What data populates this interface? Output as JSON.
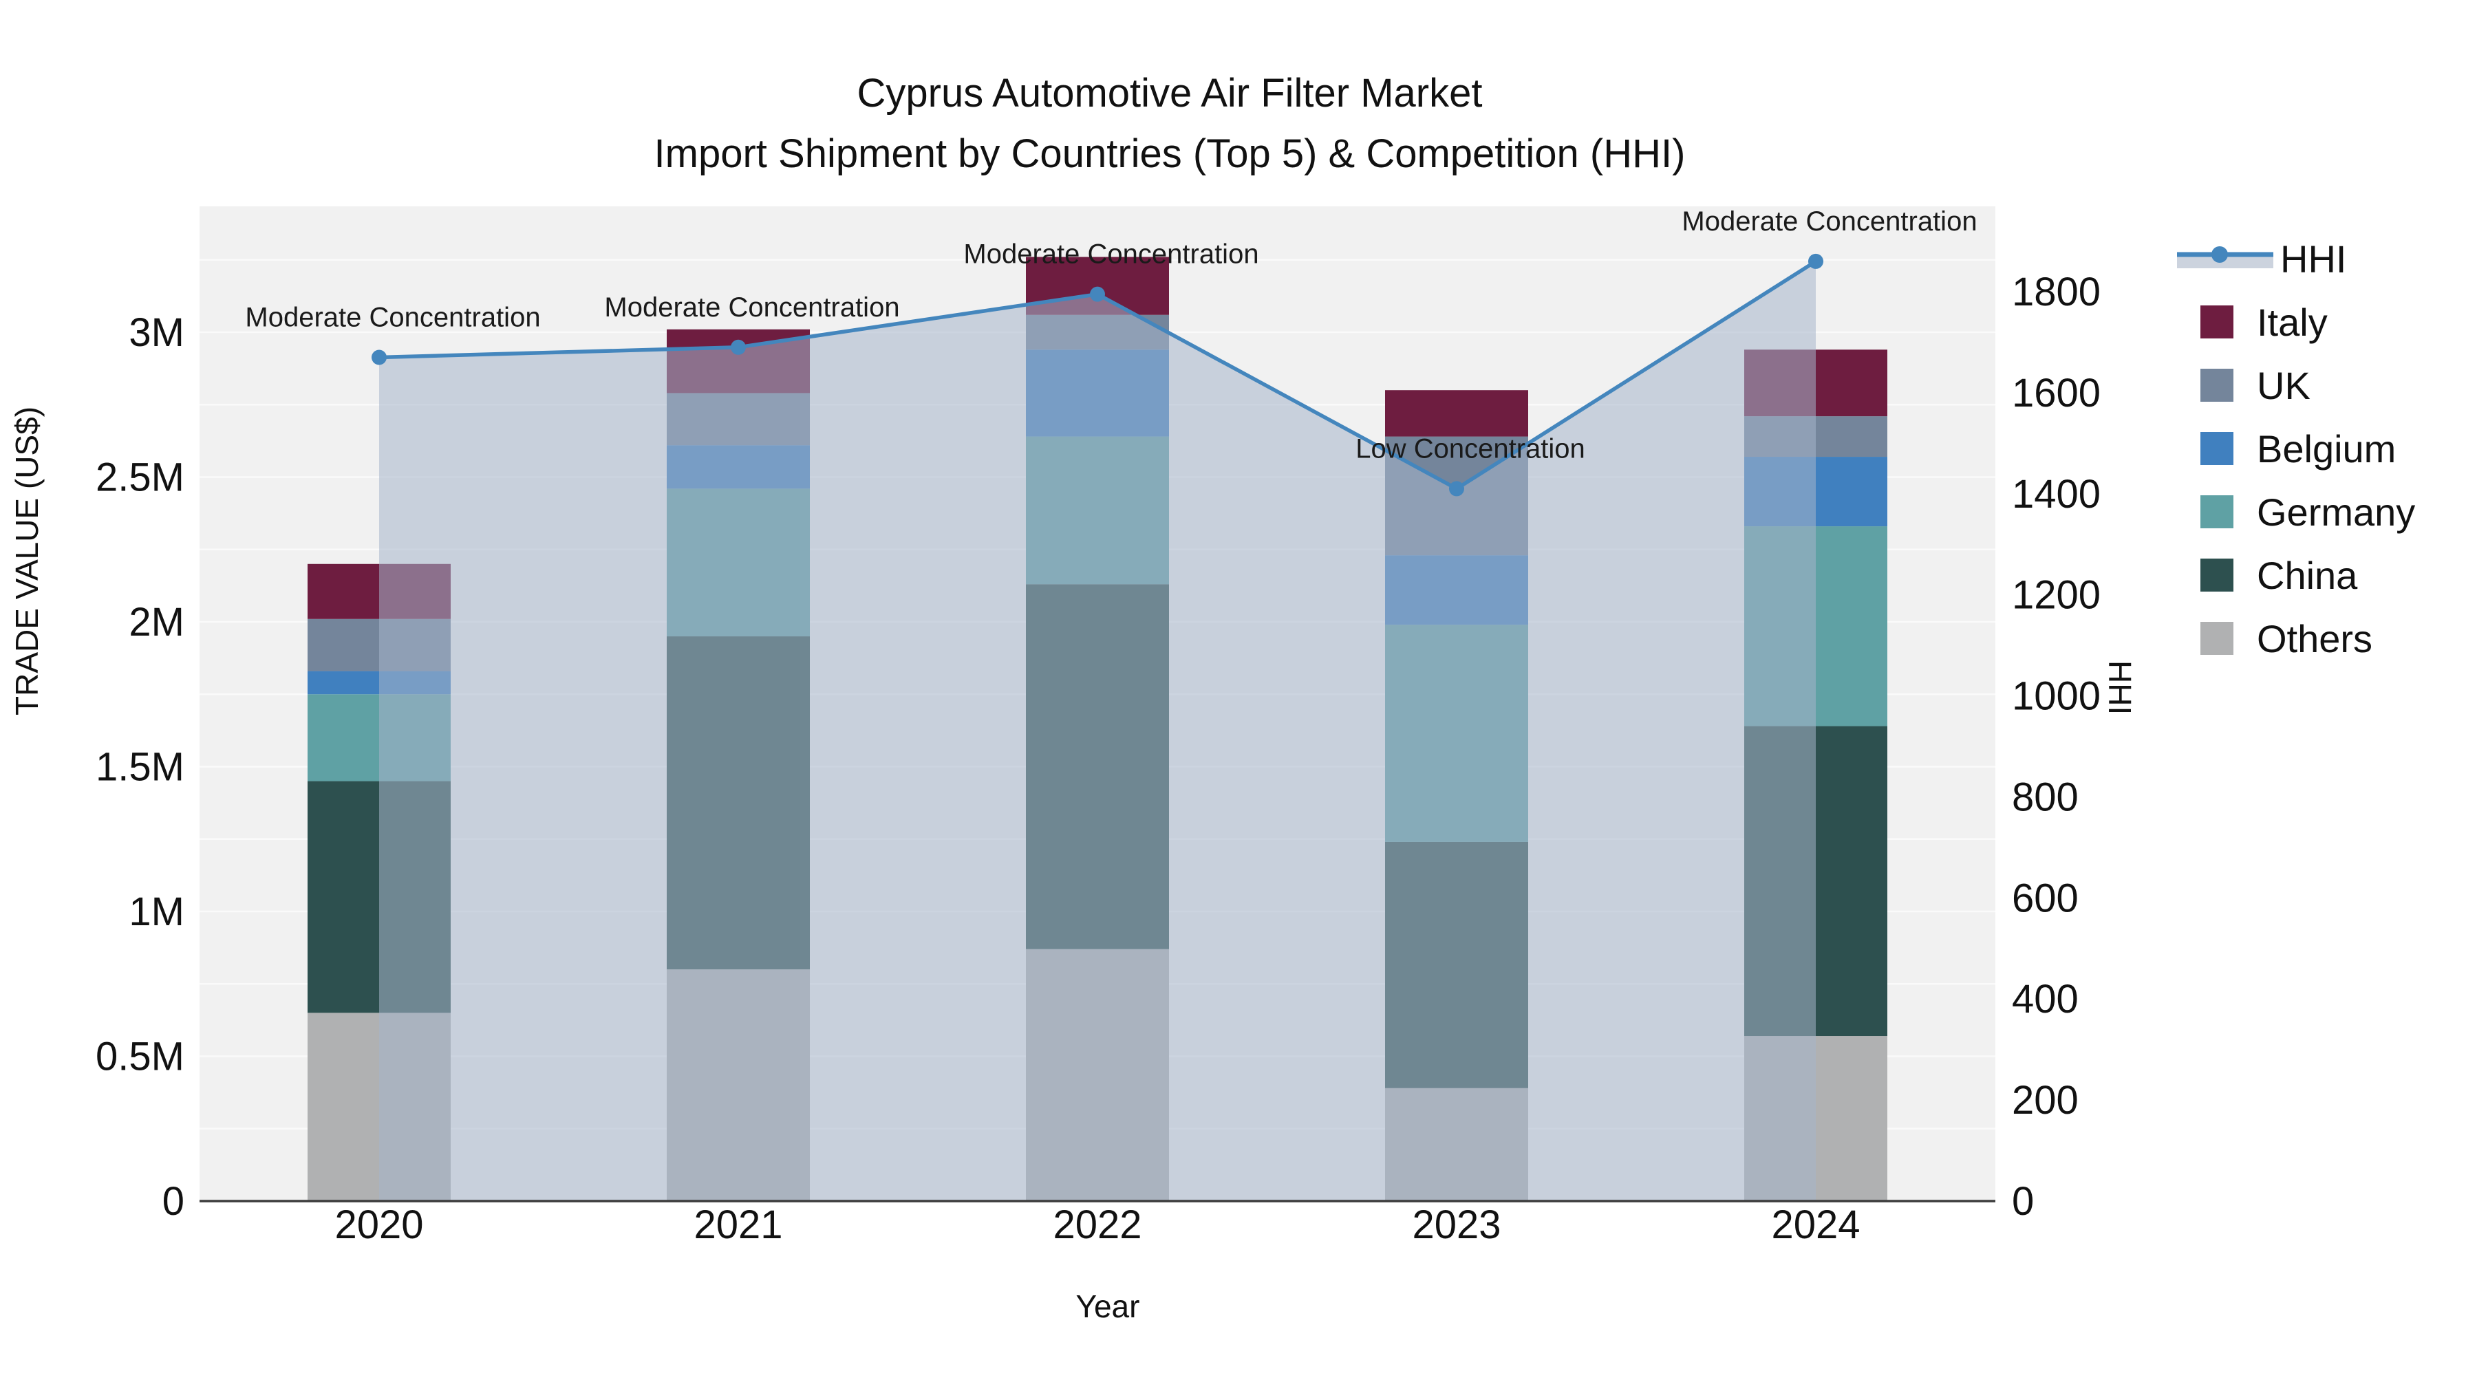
{
  "title": {
    "line1": "Cyprus Automotive Air Filter Market",
    "line2": "Import Shipment by Countries (Top 5) & Competition (HHI)"
  },
  "axes": {
    "x": {
      "label": "Year",
      "categories": [
        "2020",
        "2021",
        "2022",
        "2023",
        "2024"
      ]
    },
    "left": {
      "label": "TRADE VALUE (US$)",
      "ticks": [
        "0",
        "0.5M",
        "1M",
        "1.5M",
        "2M",
        "2.5M",
        "3M"
      ]
    },
    "right": {
      "label": "HHI",
      "ticks": [
        "0",
        "200",
        "400",
        "600",
        "800",
        "1000",
        "1200",
        "1400",
        "1600",
        "1800"
      ]
    }
  },
  "legend": {
    "items": [
      {
        "label": "HHI",
        "type": "line",
        "color": "#4486bd"
      },
      {
        "label": "Italy",
        "type": "swatch",
        "color": "#6e1d40"
      },
      {
        "label": "UK",
        "type": "swatch",
        "color": "#74859b"
      },
      {
        "label": "Belgium",
        "type": "swatch",
        "color": "#4080bf"
      },
      {
        "label": "Germany",
        "type": "swatch",
        "color": "#5fa1a4"
      },
      {
        "label": "China",
        "type": "swatch",
        "color": "#2d504f"
      },
      {
        "label": "Others",
        "type": "swatch",
        "color": "#b0b1b2"
      }
    ]
  },
  "chart_data": {
    "type": "bar+line",
    "title": "Cyprus Automotive Air Filter Market — Import Shipment by Countries (Top 5) & Competition (HHI)",
    "categories": [
      "2020",
      "2021",
      "2022",
      "2023",
      "2024"
    ],
    "bar_unit": "million US$",
    "bar_stack_order_bottom_to_top": [
      "Others",
      "China",
      "Germany",
      "Belgium",
      "UK",
      "Italy"
    ],
    "series": [
      {
        "name": "Others",
        "color": "#b0b1b2",
        "values": [
          0.65,
          0.8,
          0.87,
          0.39,
          0.57
        ]
      },
      {
        "name": "China",
        "color": "#2d504f",
        "values": [
          0.8,
          1.15,
          1.26,
          0.85,
          1.07
        ]
      },
      {
        "name": "Germany",
        "color": "#5fa1a4",
        "values": [
          0.3,
          0.51,
          0.51,
          0.75,
          0.69
        ]
      },
      {
        "name": "Belgium",
        "color": "#4080bf",
        "values": [
          0.08,
          0.15,
          0.3,
          0.24,
          0.24
        ]
      },
      {
        "name": "UK",
        "color": "#74859b",
        "values": [
          0.18,
          0.18,
          0.12,
          0.41,
          0.14
        ]
      },
      {
        "name": "Italy",
        "color": "#6e1d40",
        "values": [
          0.19,
          0.22,
          0.2,
          0.16,
          0.23
        ]
      }
    ],
    "bar_totals": [
      2.2,
      3.01,
      3.26,
      2.8,
      2.94
    ],
    "line_series": {
      "name": "HHI",
      "color": "#4486bd",
      "area_fill": "rgba(165,180,202,0.55)",
      "values": [
        1670,
        1690,
        1795,
        1410,
        1860
      ]
    },
    "annotations": [
      {
        "category": "2020",
        "text": "Moderate Concentration"
      },
      {
        "category": "2021",
        "text": "Moderate Concentration"
      },
      {
        "category": "2022",
        "text": "Moderate Concentration"
      },
      {
        "category": "2023",
        "text": "Low Concentration"
      },
      {
        "category": "2024",
        "text": "Moderate Concentration"
      }
    ],
    "xlabel": "Year",
    "ylabel_left": "TRADE VALUE (US$)",
    "ylabel_right": "HHI",
    "ylim_left_millions": [
      0,
      3.435
    ],
    "ylim_right": [
      0,
      1968
    ],
    "grid": true,
    "legend_position": "right"
  }
}
